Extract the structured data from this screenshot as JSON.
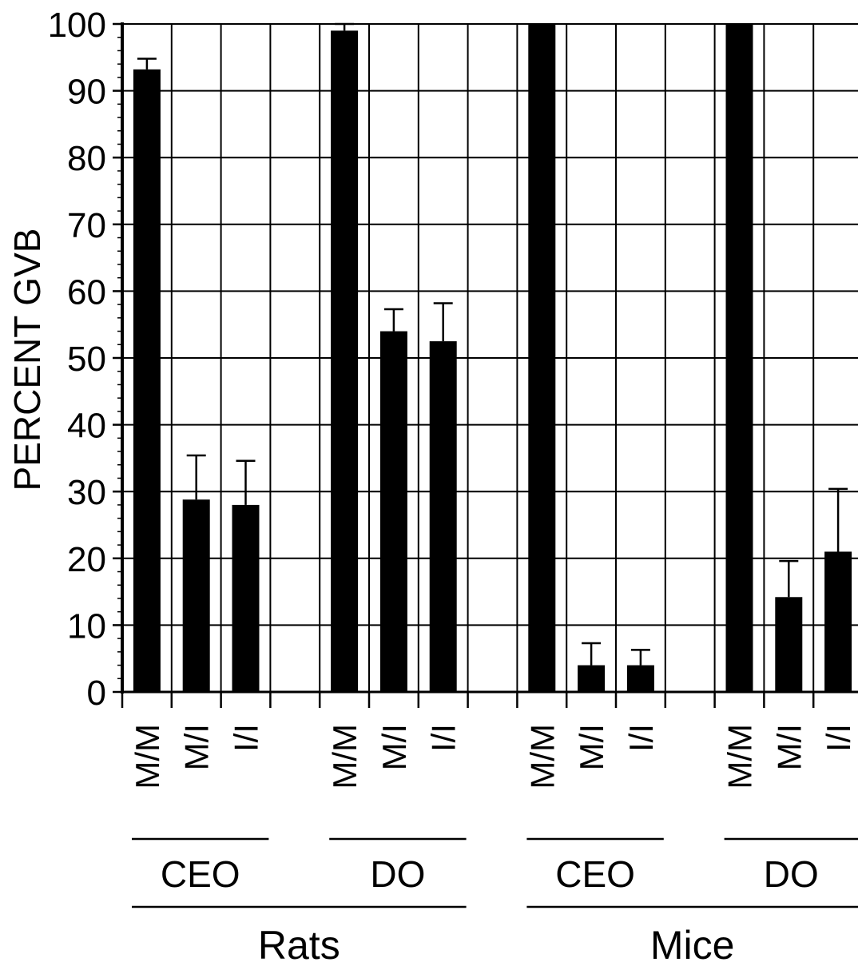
{
  "chart_data": {
    "type": "bar",
    "title": "",
    "ylabel": "PERCENT GVB",
    "xlabel": "",
    "ylim": [
      0,
      100
    ],
    "yticks": [
      0,
      10,
      20,
      30,
      40,
      50,
      60,
      70,
      80,
      90,
      100
    ],
    "grid": true,
    "categories": [
      "M/M",
      "M/I",
      "I/I",
      "M/M",
      "M/I",
      "I/I",
      "M/M",
      "M/I",
      "I/I",
      "M/M",
      "M/I",
      "I/I"
    ],
    "values": [
      93.2,
      28.8,
      28.0,
      99.0,
      54.0,
      52.5,
      100,
      4.0,
      4.0,
      100,
      14.2,
      21.0
    ],
    "error_upper": [
      1.6,
      6.6,
      6.6,
      1.0,
      3.3,
      5.7,
      0,
      3.3,
      2.3,
      0,
      5.4,
      9.4
    ],
    "groups": [
      "CEO",
      "DO",
      "CEO",
      "DO"
    ],
    "supergroups": [
      "Rats",
      "Mice"
    ],
    "color": "#000000",
    "grid_color": "#000000"
  }
}
